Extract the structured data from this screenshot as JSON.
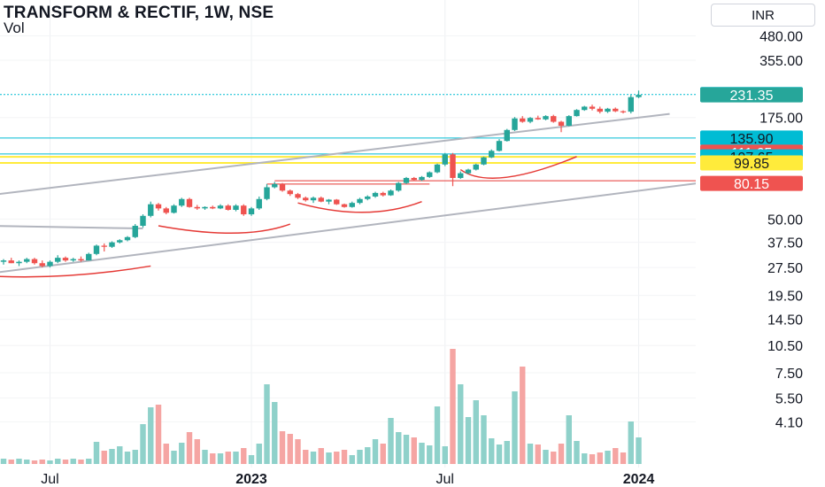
{
  "header": {
    "title": "TRANSFORM & RECTIF, 1W, NSE",
    "subtitle": "Vol",
    "currency": "INR"
  },
  "colors": {
    "up": "#26a69a",
    "down": "#ef5350",
    "up_vol": "#8fd1ca",
    "down_vol": "#f5a5a3",
    "channel": "#b2b5be",
    "level_cyan": "#00bcd4",
    "curve_red": "#e53935",
    "highlight_yellow": "#ffeb3b"
  },
  "chart_data": {
    "type": "candlestick",
    "y_scale": "log",
    "ylim": [
      3.2,
      520
    ],
    "y_ticks": [
      "480.00",
      "355.00",
      "175.00",
      "50.00",
      "37.50",
      "27.50",
      "19.50",
      "14.50",
      "10.50",
      "7.50",
      "5.50",
      "4.10"
    ],
    "x_ticks": [
      {
        "label": "Jul",
        "index": 6
      },
      {
        "label": "2023",
        "index": 32
      },
      {
        "label": "Jul",
        "index": 57
      },
      {
        "label": "2024",
        "index": 82
      }
    ],
    "candles": [
      [
        29.5,
        30.5,
        28.5,
        30.0
      ],
      [
        30.0,
        31.0,
        29.0,
        29.0
      ],
      [
        29.0,
        30.0,
        28.0,
        29.5
      ],
      [
        29.5,
        31.0,
        29.0,
        30.5
      ],
      [
        30.5,
        31.0,
        28.5,
        29.0
      ],
      [
        29.0,
        30.0,
        27.5,
        28.0
      ],
      [
        28.0,
        30.0,
        27.5,
        29.5
      ],
      [
        29.5,
        32.0,
        29.0,
        31.0
      ],
      [
        31.0,
        31.5,
        29.5,
        30.0
      ],
      [
        30.0,
        31.0,
        29.5,
        30.5
      ],
      [
        30.5,
        31.5,
        29.5,
        30.0
      ],
      [
        30.0,
        33.0,
        30.0,
        32.5
      ],
      [
        32.5,
        36.5,
        32.0,
        36.0
      ],
      [
        36.0,
        37.0,
        33.5,
        35.5
      ],
      [
        35.5,
        38.0,
        35.0,
        37.5
      ],
      [
        37.5,
        39.0,
        37.0,
        38.5
      ],
      [
        38.5,
        40.5,
        38.0,
        40.0
      ],
      [
        40.0,
        47.0,
        39.5,
        46.0
      ],
      [
        46.0,
        53.0,
        45.0,
        52.0
      ],
      [
        52.0,
        62.0,
        51.0,
        60.0
      ],
      [
        60.0,
        61.0,
        55.5,
        57.0
      ],
      [
        57.0,
        58.0,
        53.0,
        54.0
      ],
      [
        54.0,
        60.0,
        53.5,
        59.0
      ],
      [
        59.0,
        65.0,
        58.0,
        64.0
      ],
      [
        64.0,
        65.0,
        57.5,
        58.0
      ],
      [
        58.0,
        59.5,
        56.0,
        57.0
      ],
      [
        57.0,
        58.5,
        56.0,
        58.0
      ],
      [
        58.0,
        59.0,
        56.5,
        57.0
      ],
      [
        57.0,
        60.0,
        56.5,
        59.0
      ],
      [
        59.0,
        60.0,
        55.5,
        56.0
      ],
      [
        56.0,
        60.0,
        55.0,
        59.0
      ],
      [
        59.0,
        60.0,
        52.0,
        53.0
      ],
      [
        53.0,
        58.0,
        52.0,
        57.0
      ],
      [
        57.0,
        66.0,
        56.0,
        64.0
      ],
      [
        64.0,
        77.0,
        63.0,
        74.0
      ],
      [
        74.0,
        79.0,
        73.0,
        77.0
      ],
      [
        77.0,
        78.0,
        70.0,
        71.0
      ],
      [
        71.0,
        72.0,
        66.5,
        68.0
      ],
      [
        68.0,
        69.0,
        64.0,
        65.0
      ],
      [
        65.0,
        66.0,
        62.0,
        63.0
      ],
      [
        63.0,
        66.0,
        61.0,
        65.0
      ],
      [
        65.0,
        66.0,
        61.5,
        62.0
      ],
      [
        62.0,
        64.0,
        60.0,
        63.5
      ],
      [
        63.5,
        64.0,
        59.5,
        60.0
      ],
      [
        60.0,
        60.5,
        57.5,
        58.0
      ],
      [
        58.0,
        62.0,
        57.5,
        61.0
      ],
      [
        61.0,
        65.0,
        60.0,
        64.0
      ],
      [
        64.0,
        67.0,
        63.0,
        66.0
      ],
      [
        66.0,
        70.0,
        65.0,
        69.0
      ],
      [
        69.0,
        70.0,
        66.0,
        67.0
      ],
      [
        67.0,
        72.0,
        66.5,
        71.0
      ],
      [
        71.0,
        79.0,
        70.0,
        78.0
      ],
      [
        78.0,
        84.0,
        77.0,
        83.0
      ],
      [
        83.0,
        84.0,
        80.0,
        81.0
      ],
      [
        81.0,
        85.0,
        80.0,
        84.0
      ],
      [
        84.0,
        90.0,
        83.0,
        89.0
      ],
      [
        89.0,
        99.0,
        88.0,
        98.0
      ],
      [
        98.0,
        113.0,
        96.0,
        111.0
      ],
      [
        111.0,
        113.0,
        75.0,
        83.0
      ],
      [
        83.0,
        90.0,
        82.0,
        88.0
      ],
      [
        88.0,
        93.0,
        87.0,
        92.0
      ],
      [
        92.0,
        99.0,
        91.0,
        98.0
      ],
      [
        98.0,
        108.0,
        97.0,
        107.0
      ],
      [
        107.0,
        118.0,
        106.0,
        116.0
      ],
      [
        116.0,
        134.0,
        115.0,
        131.0
      ],
      [
        131.0,
        152.0,
        130.0,
        150.0
      ],
      [
        150.0,
        176.0,
        148.0,
        173.0
      ],
      [
        173.0,
        178.0,
        164.0,
        166.0
      ],
      [
        166.0,
        176.0,
        163.0,
        174.0
      ],
      [
        174.0,
        179.0,
        170.0,
        171.0
      ],
      [
        171.0,
        180.0,
        169.0,
        178.0
      ],
      [
        178.0,
        181.0,
        164.0,
        166.0
      ],
      [
        166.0,
        168.0,
        146.0,
        158.0
      ],
      [
        158.0,
        180.0,
        157.0,
        178.0
      ],
      [
        178.0,
        194.0,
        177.0,
        192.0
      ],
      [
        192.0,
        202.0,
        190.0,
        200.0
      ],
      [
        200.0,
        205.0,
        191.0,
        195.0
      ],
      [
        195.0,
        200.0,
        184.0,
        188.0
      ],
      [
        188.0,
        197.0,
        185.0,
        195.0
      ],
      [
        195.0,
        198.0,
        187.0,
        189.0
      ],
      [
        189.0,
        191.0,
        184.0,
        188.0
      ],
      [
        188.0,
        231.0,
        184.0,
        225.0
      ],
      [
        225.0,
        244.0,
        222.0,
        231.35
      ]
    ],
    "volume": [
      0.6,
      0.5,
      0.6,
      0.5,
      0.4,
      0.5,
      0.4,
      0.6,
      0.5,
      0.6,
      0.5,
      0.6,
      2.5,
      1.5,
      1.7,
      2.0,
      1.4,
      1.6,
      4.5,
      6.4,
      6.7,
      2.3,
      1.5,
      2.4,
      3.6,
      2.8,
      1.6,
      1.2,
      1.2,
      1.4,
      1.4,
      1.8,
      1.0,
      2.3,
      9.0,
      7.0,
      3.7,
      3.4,
      2.8,
      1.6,
      1.4,
      1.8,
      1.3,
      1.4,
      1.6,
      1.0,
      1.6,
      1.9,
      2.8,
      2.3,
      5.2,
      3.6,
      3.3,
      3.0,
      2.4,
      2.1,
      6.5,
      2.0,
      13.0,
      9.0,
      5.3,
      7.2,
      5.5,
      2.9,
      2.2,
      2.6,
      8.2,
      11.0,
      2.3,
      2.2,
      1.6,
      1.4,
      2.3,
      5.5,
      2.6,
      1.2,
      1.1,
      1.3,
      1.5,
      1.8,
      1.3,
      4.8,
      3.0
    ],
    "price_labels": [
      {
        "value": "232.30",
        "price": 232.3,
        "style": "cyan"
      },
      {
        "value": "231.35",
        "price": 231.35,
        "style": "green"
      },
      {
        "value": "135.90",
        "price": 135.9,
        "style": "cyan"
      },
      {
        "value": "111.65",
        "price": 111.65,
        "style": "red"
      },
      {
        "value": "107.65",
        "price": 107.65,
        "style": "cyan"
      },
      {
        "value": "99.85",
        "price": 99.85,
        "style": "yellow"
      },
      {
        "value": "80.15",
        "price": 80.15,
        "style": "red"
      }
    ],
    "horizontal_lines": [
      {
        "price": 232.3,
        "style": "cyan-dotted"
      },
      {
        "price": 135.9,
        "style": "cyan"
      },
      {
        "price": 111.65,
        "style": "cyan"
      },
      {
        "price": 107.65,
        "style": "yellow"
      },
      {
        "price": 99.85,
        "style": "yellow"
      },
      {
        "price": 80.15,
        "style": "red",
        "from_index": 35
      },
      {
        "price": 77.0,
        "style": "red",
        "from_index": 34,
        "to_index": 55
      }
    ],
    "trend_lines": [
      {
        "from": [
          -2,
          67
        ],
        "to": [
          86,
          183
        ]
      },
      {
        "from": [
          -2,
          25.5
        ],
        "to": [
          95,
          83
        ]
      },
      {
        "from": [
          -2,
          46
        ],
        "to": [
          18,
          44.5
        ]
      }
    ],
    "curves": [
      {
        "from": [
          -2,
          24.8
        ],
        "ctrl": [
          8,
          23.5
        ],
        "to": [
          19,
          28.0
        ]
      },
      {
        "from": [
          20,
          46
        ],
        "ctrl": [
          31,
          38
        ],
        "to": [
          37,
          47
        ]
      },
      {
        "from": [
          38,
          61
        ],
        "ctrl": [
          47,
          48
        ],
        "to": [
          54,
          62
        ]
      },
      {
        "from": [
          59,
          92
        ],
        "ctrl": [
          63,
          70
        ],
        "to": [
          74,
          108
        ]
      }
    ]
  }
}
